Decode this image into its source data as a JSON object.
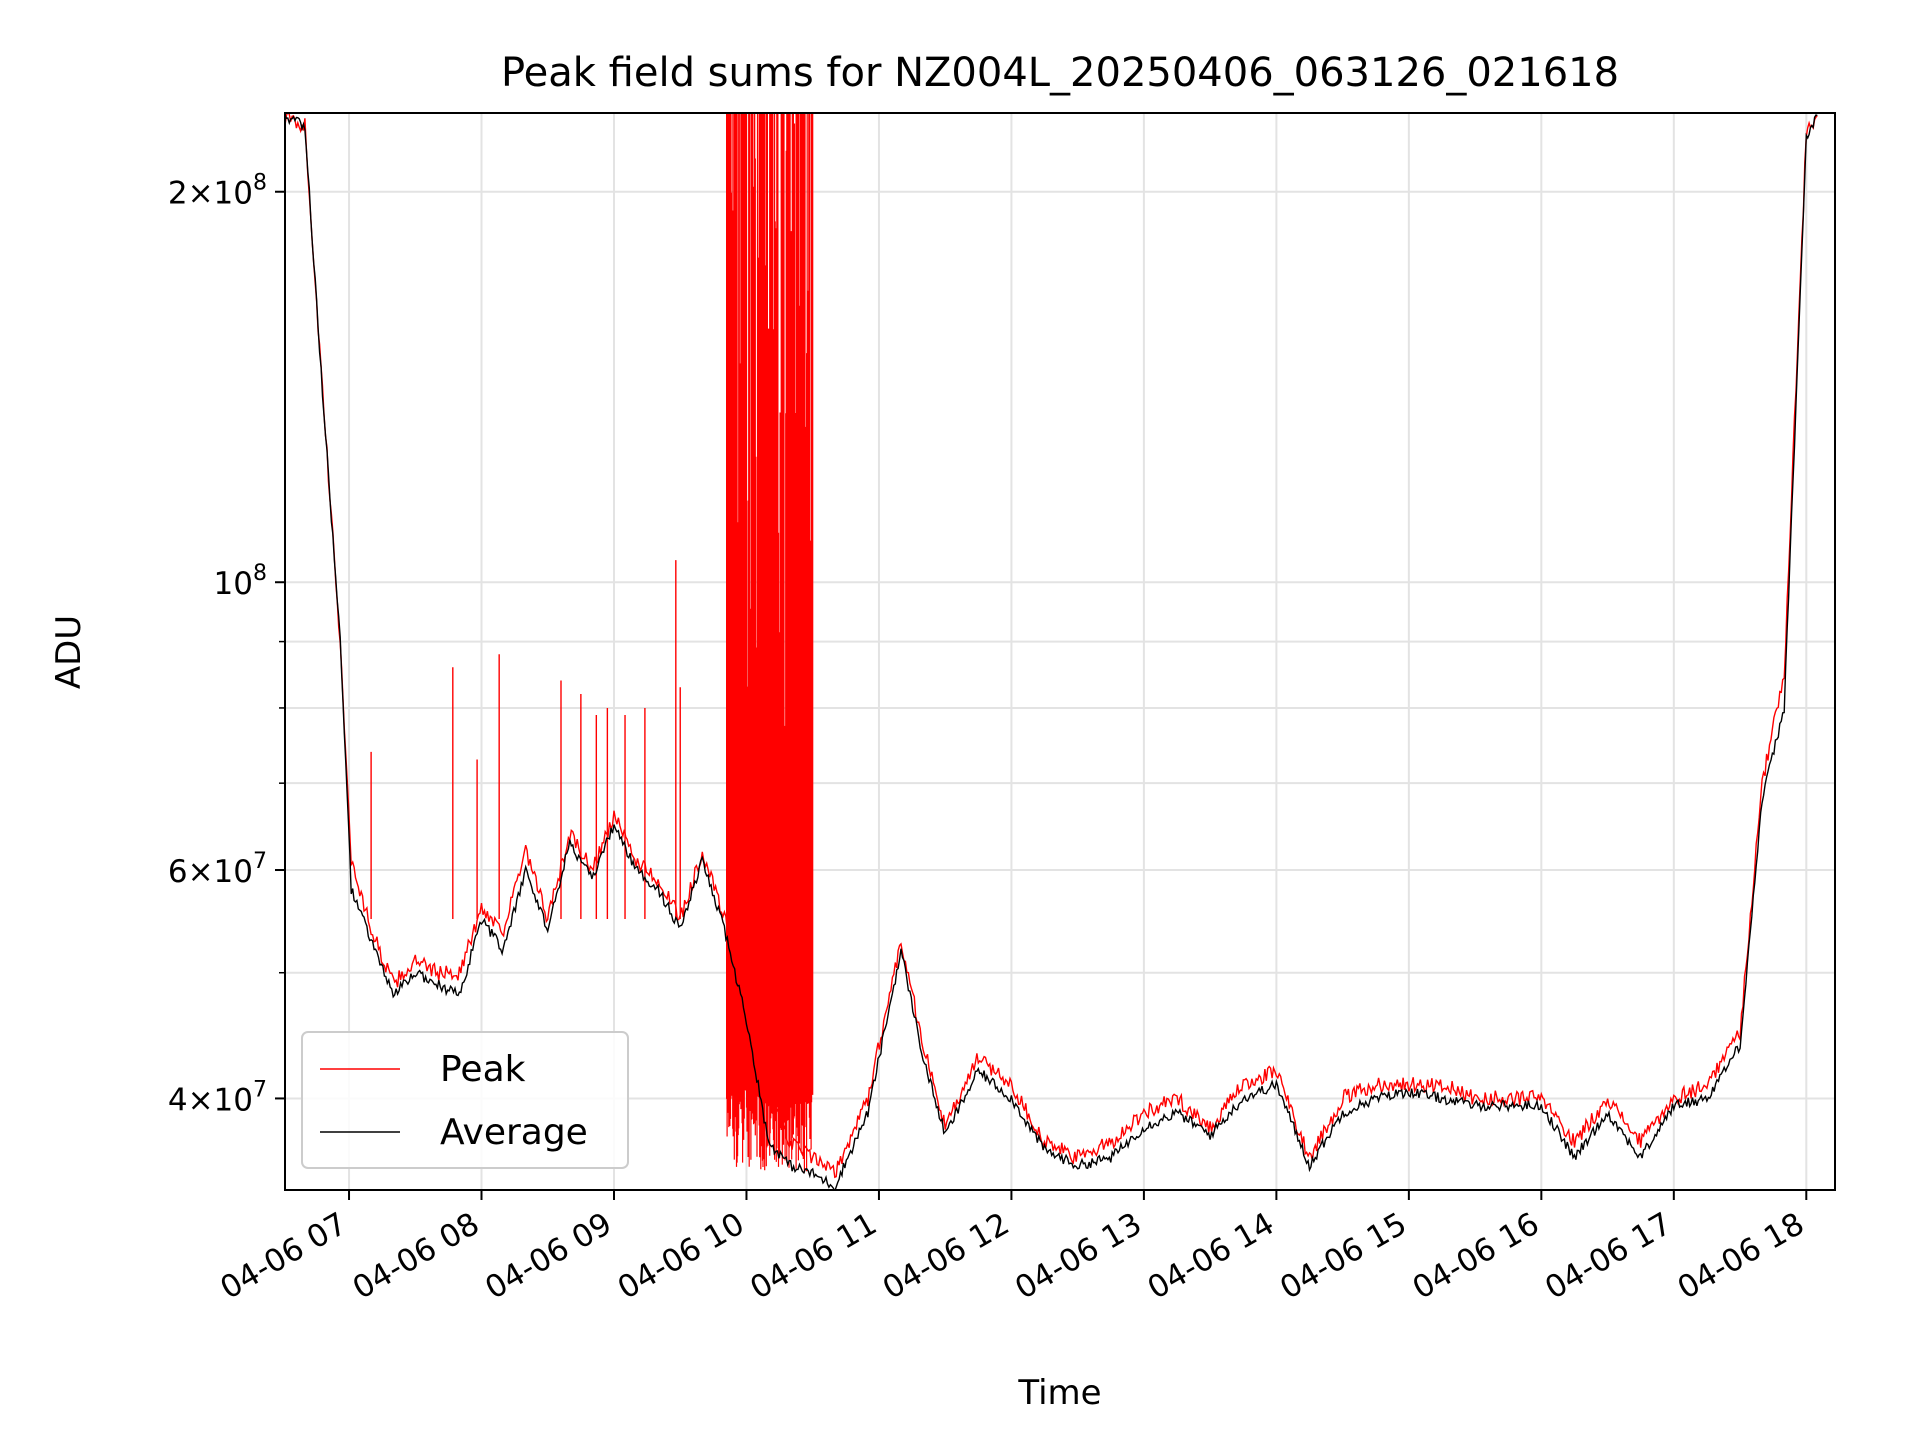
{
  "chart_data": {
    "type": "line",
    "title": "Peak field sums for NZ004L_20250406_063126_021618",
    "xlabel": "Time",
    "ylabel": "ADU",
    "xlim": [
      "2025-04-06 06:31",
      "2025-04-06 18:13"
    ],
    "ylim": [
      34000000,
      230000000
    ],
    "yscale": "log",
    "grid": true,
    "legend_position": "lower-left",
    "x_tick_labels": [
      "04-06 07",
      "04-06 08",
      "04-06 09",
      "04-06 10",
      "04-06 11",
      "04-06 12",
      "04-06 13",
      "04-06 14",
      "04-06 15",
      "04-06 16",
      "04-06 17",
      "04-06 18"
    ],
    "x_tick_hours": [
      7,
      8,
      9,
      10,
      11,
      12,
      13,
      14,
      15,
      16,
      17,
      18
    ],
    "y_ticks_major": [
      {
        "value": 40000000,
        "mantissa": "4",
        "exponent": "7"
      },
      {
        "value": 60000000,
        "mantissa": "6",
        "exponent": "7"
      },
      {
        "value": 100000000,
        "mantissa": "",
        "exponent": "8"
      },
      {
        "value": 200000000,
        "mantissa": "2",
        "exponent": "8"
      }
    ],
    "y_ticks_minor": [
      50000000,
      70000000,
      80000000,
      90000000
    ],
    "series": [
      {
        "name": "Peak",
        "color": "#ff0000",
        "x": [
          "2025-04-06 06:31",
          "2025-04-06 06:40",
          "2025-04-06 06:48",
          "2025-04-06 06:56",
          "2025-04-06 07:01",
          "2025-04-06 07:10",
          "2025-04-06 07:20",
          "2025-04-06 07:30",
          "2025-04-06 07:40",
          "2025-04-06 07:50",
          "2025-04-06 08:00",
          "2025-04-06 08:10",
          "2025-04-06 08:20",
          "2025-04-06 08:30",
          "2025-04-06 08:40",
          "2025-04-06 08:50",
          "2025-04-06 09:00",
          "2025-04-06 09:10",
          "2025-04-06 09:20",
          "2025-04-06 09:30",
          "2025-04-06 09:40",
          "2025-04-06 09:50",
          "2025-04-06 10:00",
          "2025-04-06 10:10",
          "2025-04-06 10:20",
          "2025-04-06 10:30",
          "2025-04-06 10:40",
          "2025-04-06 10:55",
          "2025-04-06 11:10",
          "2025-04-06 11:20",
          "2025-04-06 11:30",
          "2025-04-06 11:45",
          "2025-04-06 12:00",
          "2025-04-06 12:15",
          "2025-04-06 12:30",
          "2025-04-06 12:45",
          "2025-04-06 13:00",
          "2025-04-06 13:15",
          "2025-04-06 13:30",
          "2025-04-06 13:45",
          "2025-04-06 14:00",
          "2025-04-06 14:15",
          "2025-04-06 14:30",
          "2025-04-06 14:45",
          "2025-04-06 15:00",
          "2025-04-06 15:15",
          "2025-04-06 15:30",
          "2025-04-06 15:45",
          "2025-04-06 16:00",
          "2025-04-06 16:15",
          "2025-04-06 16:30",
          "2025-04-06 16:45",
          "2025-04-06 17:00",
          "2025-04-06 17:15",
          "2025-04-06 17:30",
          "2025-04-06 17:40",
          "2025-04-06 17:50",
          "2025-04-06 18:00",
          "2025-04-06 18:05"
        ],
        "values": [
          228000000,
          225000000,
          140000000,
          90000000,
          61000000,
          54000000,
          49000000,
          51000000,
          50000000,
          50000000,
          56000000,
          54000000,
          62000000,
          55000000,
          64000000,
          60000000,
          66000000,
          61000000,
          59000000,
          55000000,
          62000000,
          55000000,
          48000000,
          40000000,
          37000000,
          36000000,
          35000000,
          40000000,
          53000000,
          44000000,
          38000000,
          43000000,
          41000000,
          37000000,
          36000000,
          37000000,
          39000000,
          40000000,
          38000000,
          41000000,
          42000000,
          36000000,
          40000000,
          41000000,
          41000000,
          41000000,
          40000000,
          40000000,
          40000000,
          37000000,
          40000000,
          37000000,
          40000000,
          41000000,
          45000000,
          70000000,
          85000000,
          222000000,
          229000000
        ]
      },
      {
        "name": "Average",
        "color": "#000000",
        "x": [
          "2025-04-06 06:31",
          "2025-04-06 06:40",
          "2025-04-06 06:48",
          "2025-04-06 06:56",
          "2025-04-06 07:01",
          "2025-04-06 07:10",
          "2025-04-06 07:20",
          "2025-04-06 07:30",
          "2025-04-06 07:40",
          "2025-04-06 07:50",
          "2025-04-06 08:00",
          "2025-04-06 08:10",
          "2025-04-06 08:20",
          "2025-04-06 08:30",
          "2025-04-06 08:40",
          "2025-04-06 08:50",
          "2025-04-06 09:00",
          "2025-04-06 09:10",
          "2025-04-06 09:20",
          "2025-04-06 09:30",
          "2025-04-06 09:40",
          "2025-04-06 09:50",
          "2025-04-06 10:00",
          "2025-04-06 10:10",
          "2025-04-06 10:20",
          "2025-04-06 10:30",
          "2025-04-06 10:40",
          "2025-04-06 10:55",
          "2025-04-06 11:10",
          "2025-04-06 11:20",
          "2025-04-06 11:30",
          "2025-04-06 11:45",
          "2025-04-06 12:00",
          "2025-04-06 12:15",
          "2025-04-06 12:30",
          "2025-04-06 12:45",
          "2025-04-06 13:00",
          "2025-04-06 13:15",
          "2025-04-06 13:30",
          "2025-04-06 13:45",
          "2025-04-06 14:00",
          "2025-04-06 14:15",
          "2025-04-06 14:30",
          "2025-04-06 14:45",
          "2025-04-06 15:00",
          "2025-04-06 15:15",
          "2025-04-06 15:30",
          "2025-04-06 15:45",
          "2025-04-06 16:00",
          "2025-04-06 16:15",
          "2025-04-06 16:30",
          "2025-04-06 16:45",
          "2025-04-06 17:00",
          "2025-04-06 17:15",
          "2025-04-06 17:30",
          "2025-04-06 17:40",
          "2025-04-06 17:50",
          "2025-04-06 18:00",
          "2025-04-06 18:05"
        ],
        "values": [
          228000000,
          225000000,
          140000000,
          90000000,
          58000000,
          53000000,
          48000000,
          50000000,
          49000000,
          48000000,
          55000000,
          52000000,
          60000000,
          54000000,
          63000000,
          59000000,
          65000000,
          60000000,
          58000000,
          54000000,
          61000000,
          54000000,
          46000000,
          37000000,
          35500000,
          35000000,
          34200000,
          39000000,
          52000000,
          43000000,
          37500000,
          42000000,
          40000000,
          36500000,
          35500000,
          36000000,
          38000000,
          39000000,
          37500000,
          40000000,
          41000000,
          35500000,
          39000000,
          40000000,
          40500000,
          40000000,
          39500000,
          39500000,
          39500000,
          36000000,
          39000000,
          36000000,
          39500000,
          40000000,
          44000000,
          68000000,
          80000000,
          220000000,
          229000000
        ]
      }
    ],
    "peak_spikes": [
      {
        "x": "2025-04-06 07:10",
        "value": 74000000
      },
      {
        "x": "2025-04-06 07:47",
        "value": 86000000
      },
      {
        "x": "2025-04-06 07:58",
        "value": 73000000
      },
      {
        "x": "2025-04-06 08:08",
        "value": 88000000
      },
      {
        "x": "2025-04-06 08:36",
        "value": 84000000
      },
      {
        "x": "2025-04-06 08:45",
        "value": 82000000
      },
      {
        "x": "2025-04-06 08:52",
        "value": 79000000
      },
      {
        "x": "2025-04-06 08:57",
        "value": 80000000
      },
      {
        "x": "2025-04-06 09:05",
        "value": 79000000
      },
      {
        "x": "2025-04-06 09:14",
        "value": 80000000
      },
      {
        "x": "2025-04-06 09:28",
        "value": 104000000
      },
      {
        "x": "2025-04-06 09:30",
        "value": 83000000
      }
    ],
    "peak_noisy_band": {
      "x_start": "2025-04-06 09:51",
      "x_end": "2025-04-06 10:30",
      "max": 230000000
    }
  }
}
